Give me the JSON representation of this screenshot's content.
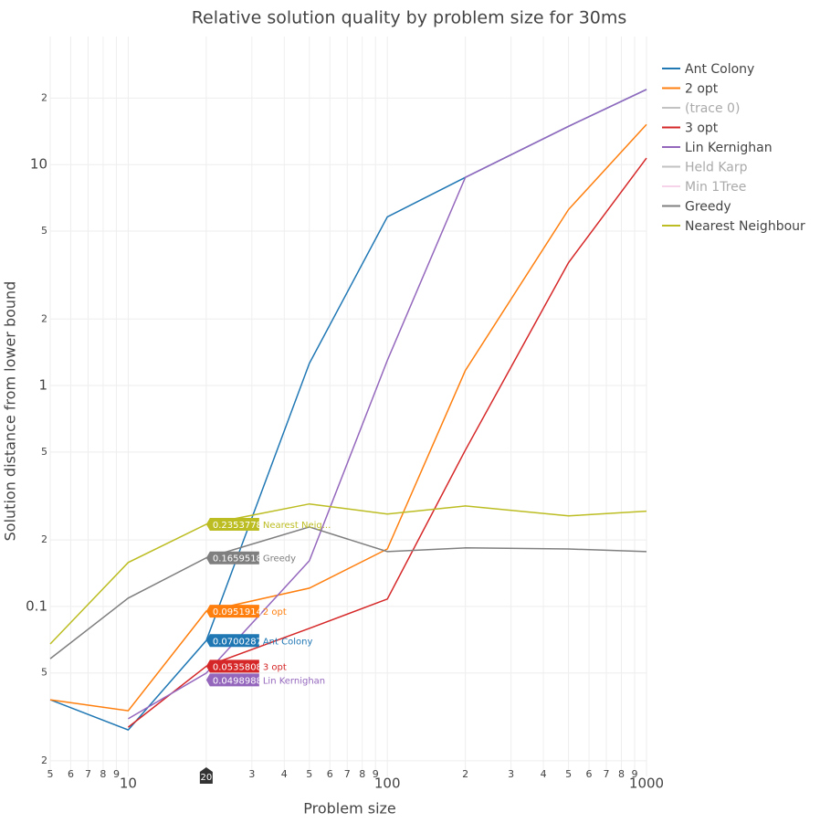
{
  "chart_data": {
    "type": "line",
    "title": "Relative solution quality by problem size for 30ms",
    "x_label": "Problem size",
    "y_label": "Solution distance from lower bound",
    "x": [
      5,
      10,
      20,
      50,
      100,
      200,
      500,
      1000
    ],
    "xlog": true,
    "ylog": true,
    "grid": true,
    "xlim": [
      5,
      1000
    ],
    "ylim": [
      0.017,
      38
    ],
    "xticks": [
      5,
      6,
      7,
      8,
      9,
      10,
      {
        "value": 30,
        "label": "3"
      },
      {
        "value": 40,
        "label": "4"
      },
      {
        "value": 50,
        "label": "5"
      },
      {
        "value": 60,
        "label": "6"
      },
      {
        "value": 70,
        "label": "7"
      },
      {
        "value": 80,
        "label": "8"
      },
      {
        "value": 90,
        "label": "9"
      },
      100,
      {
        "value": 200,
        "label": "2"
      },
      {
        "value": 300,
        "label": "3"
      },
      {
        "value": 400,
        "label": "4"
      },
      {
        "value": 500,
        "label": "5"
      },
      {
        "value": 600,
        "label": "6"
      },
      {
        "value": 700,
        "label": "7"
      },
      {
        "value": 800,
        "label": "8"
      },
      {
        "value": 900,
        "label": "9"
      },
      1000
    ],
    "yticks": [
      {
        "value": 20,
        "label": "2"
      },
      10,
      {
        "value": 5,
        "label": "5"
      },
      {
        "value": 2,
        "label": "2"
      },
      1,
      {
        "value": 0.5,
        "label": "5"
      },
      {
        "value": 0.2,
        "label": "2"
      },
      0.1,
      {
        "value": 0.05,
        "label": "5"
      },
      {
        "value": 0.02,
        "label": "2"
      }
    ],
    "hover_x": 20,
    "legend": "right",
    "series": [
      {
        "name": "Ant Colony",
        "color": "#1f77b4",
        "values": [
          0.0378,
          0.0276,
          0.07002877,
          1.26,
          5.8,
          8.75,
          14.9,
          21.9
        ]
      },
      {
        "name": "2 opt",
        "color": "#ff7f0e",
        "values": [
          0.0378,
          0.0337,
          0.09519147,
          0.121,
          0.182,
          1.17,
          6.26,
          15.2
        ]
      },
      {
        "name": " (trace 0)",
        "color": "#9a9a9a",
        "visible": false
      },
      {
        "name": "3 opt",
        "color": "#d62728",
        "values": [
          null,
          0.0284,
          0.05358087,
          0.0796,
          0.108,
          0.51,
          3.6,
          10.7
        ]
      },
      {
        "name": "Lin Kernighan",
        "color": "#9467bd",
        "values": [
          null,
          0.031,
          0.0498988,
          0.161,
          1.3,
          8.75,
          14.9,
          21.9
        ]
      },
      {
        "name": "Held Karp",
        "color": "#9a9a9a",
        "visible": false
      },
      {
        "name": "Min 1Tree",
        "color": "#f2b6dd",
        "visible": false
      },
      {
        "name": "Greedy",
        "color": "#7f7f7f",
        "values": [
          0.058,
          0.109,
          0.1659518,
          0.229,
          0.177,
          0.184,
          0.182,
          0.177
        ]
      },
      {
        "name": "Nearest Neighbour",
        "color": "#bcbd22",
        "hover_text": "Nearest Neig...",
        "values": [
          0.0676,
          0.158,
          0.2353778,
          0.291,
          0.262,
          0.285,
          0.257,
          0.27
        ]
      }
    ]
  }
}
